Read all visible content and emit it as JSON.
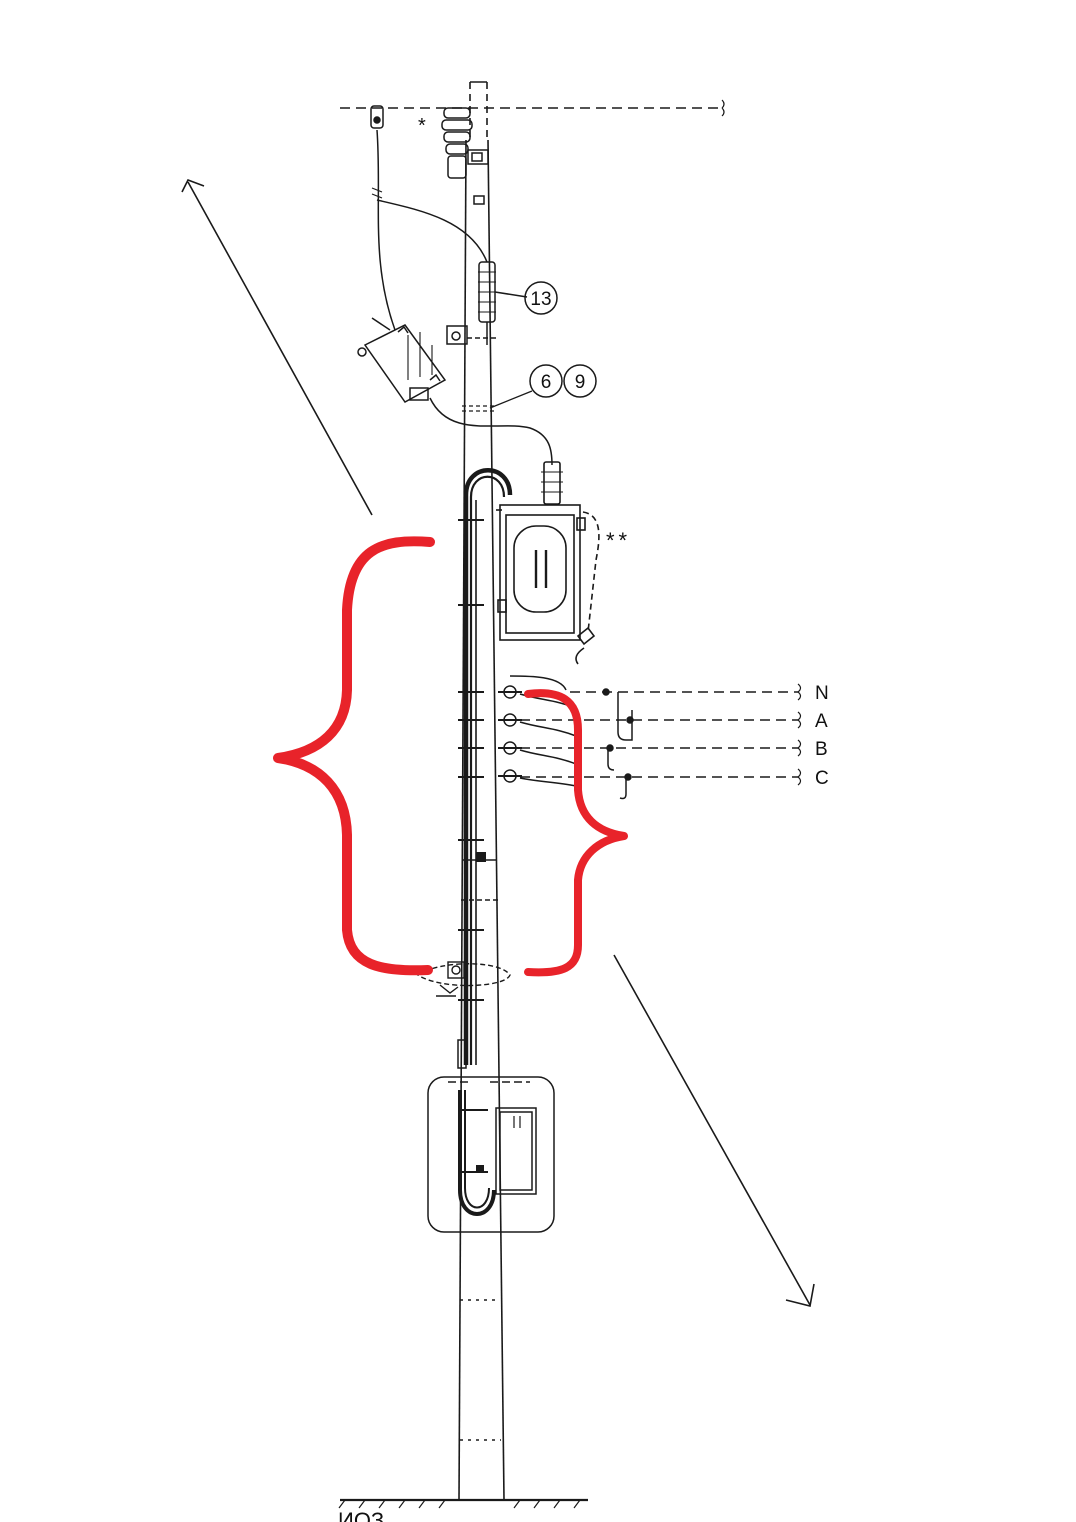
{
  "diagram": {
    "callouts": [
      "13",
      "6",
      "9"
    ],
    "markers": {
      "single": "*",
      "double": "**"
    },
    "phase_labels": [
      "N",
      "A",
      "B",
      "C"
    ],
    "bottom_text": "ИОЗ",
    "annotation_color": "#e8232a",
    "ink_color": "#1a1a1a"
  }
}
